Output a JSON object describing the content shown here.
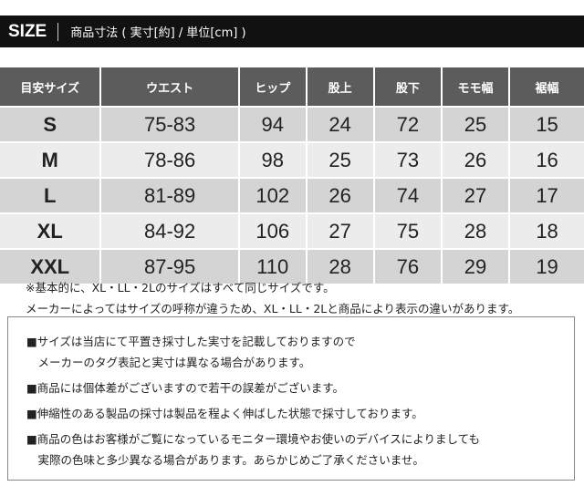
{
  "header": {
    "size_label": "SIZE",
    "subtitle": "商品寸法 ( 実寸[約] / 単位[cm] )"
  },
  "table": {
    "columns": [
      "目安サイズ",
      "ウエスト",
      "ヒップ",
      "股上",
      "股下",
      "モモ幅",
      "裾幅"
    ],
    "rows": [
      [
        "S",
        "75-83",
        "94",
        "24",
        "72",
        "25",
        "15"
      ],
      [
        "M",
        "78-86",
        "98",
        "25",
        "73",
        "26",
        "16"
      ],
      [
        "L",
        "81-89",
        "102",
        "26",
        "74",
        "27",
        "17"
      ],
      [
        "XL",
        "84-92",
        "106",
        "27",
        "75",
        "28",
        "18"
      ],
      [
        "XXL",
        "87-95",
        "110",
        "28",
        "76",
        "29",
        "19"
      ]
    ]
  },
  "notes": [
    "※基本的に、XL・LL・2Lのサイズはすべて同じサイズです。",
    "メーカーによってはサイズの呼称が違うため、XL・LL・2Lと商品により表示の違いがあります。"
  ],
  "box_lines": [
    "■サイズは当店にて平置き採寸した実寸を記載しておりますので",
    "　メーカーのタグ表記と実寸は異なる場合があります。",
    "■商品には個体差がございますので若干の誤差がございます。",
    "■伸縮性のある製品の採寸は製品を程よく伸ばした状態で採寸しております。",
    "■商品の色はお客様がご覧になっているモニター環境やお使いのデバイスによりましても",
    "　実際の色味と多少異なる場合があります。あらかじめご了承くださいませ。"
  ]
}
